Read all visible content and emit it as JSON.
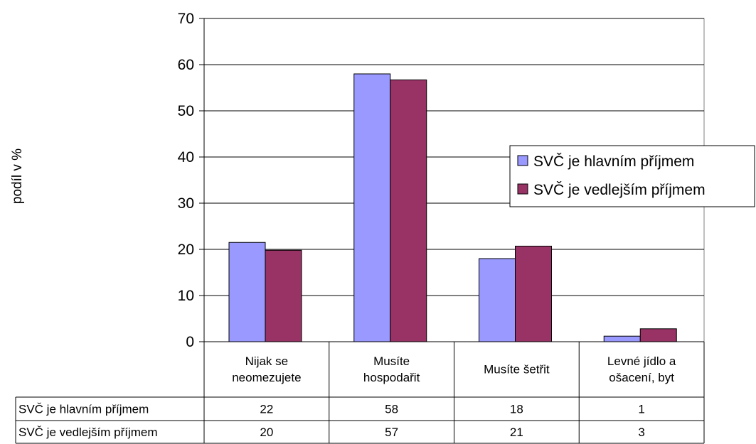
{
  "chart_data": {
    "type": "bar",
    "ylabel": "podíl v %",
    "ylim": [
      0,
      70
    ],
    "yticks": [
      0,
      10,
      20,
      30,
      40,
      50,
      60,
      70
    ],
    "grid": true,
    "legend_position": "right",
    "categories": [
      [
        "Nijak se",
        "neomezujete"
      ],
      [
        "Musíte",
        "hospodařit"
      ],
      [
        "Musíte šetřit"
      ],
      [
        "Levné jídlo a",
        "ošacení, byt"
      ]
    ],
    "series": [
      {
        "name": "SVČ je hlavním příjmem",
        "table_name": "SVČ je hlavním příjmem",
        "color": "#9999FF",
        "values": [
          21.5,
          58,
          18,
          1.2
        ],
        "table_values": [
          "22",
          "58",
          "18",
          "1"
        ]
      },
      {
        "name": "SVČ je vedlejším příjmem",
        "table_name": "SVČ je vedlejším příjmem",
        "color": "#993366",
        "values": [
          19.8,
          56.7,
          20.7,
          2.8
        ],
        "table_values": [
          "20",
          "57",
          "21",
          "3"
        ]
      }
    ]
  }
}
